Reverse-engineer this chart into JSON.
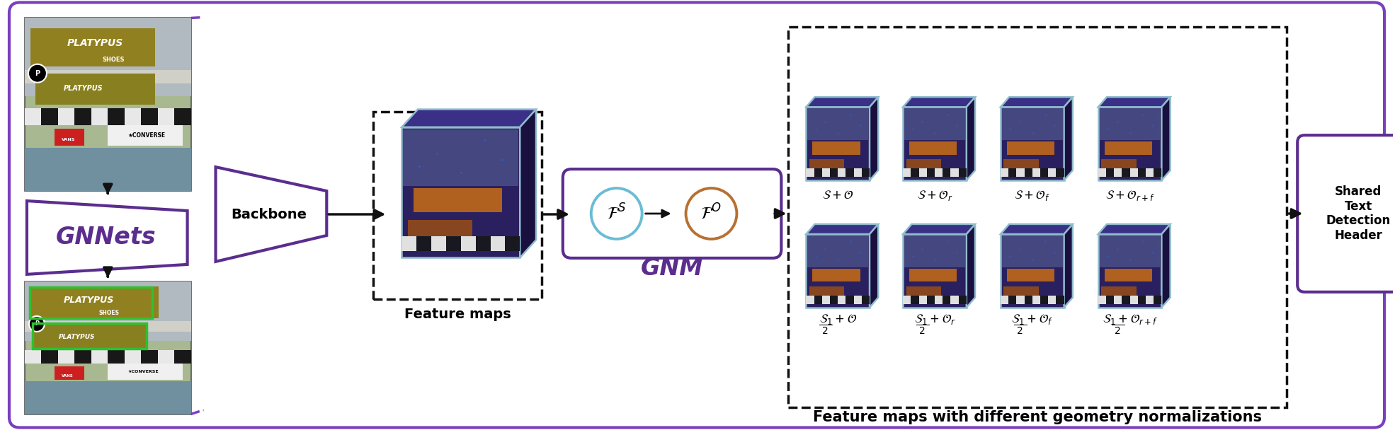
{
  "fig_width": 19.7,
  "fig_height": 6.08,
  "bg_color": "#ffffff",
  "purple": "#5B2D8E",
  "purple_mid": "#7B3FBE",
  "arrow_color": "#111111",
  "blue_circle": "#6BBCD4",
  "orange_circle": "#B87030",
  "title_label": "Feature maps with different geometry normalizations",
  "gnm_label": "GNM",
  "feature_maps_label": "Feature maps",
  "backbone_label": "Backbone",
  "gnnets_label": "GNNets",
  "shared_text": "Shared\nText\nDetection\nHeader",
  "fs_label": "$\\mathcal{F}^S$",
  "fo_label": "$\\mathcal{F}^O$",
  "photo1_colors": {
    "sky": "#B0C8D8",
    "ceiling": "#C8C8B0",
    "sign_gold": "#A09020",
    "sign_green": "#50A030",
    "checker_w": "#E8E8E8",
    "checker_b": "#181818",
    "text_col": "#F0F0F0"
  },
  "feature_map_front": "#2A2060",
  "feature_map_top": "#3A3088",
  "feature_map_right": "#1A1040",
  "feature_map_edge": "#90BCCC",
  "feature_img_colors": {
    "bg": "#2A2568",
    "ceiling": "#5060A0",
    "sign_orange": "#D07020",
    "checker": "#303060",
    "star_blue": "#4060C0"
  }
}
